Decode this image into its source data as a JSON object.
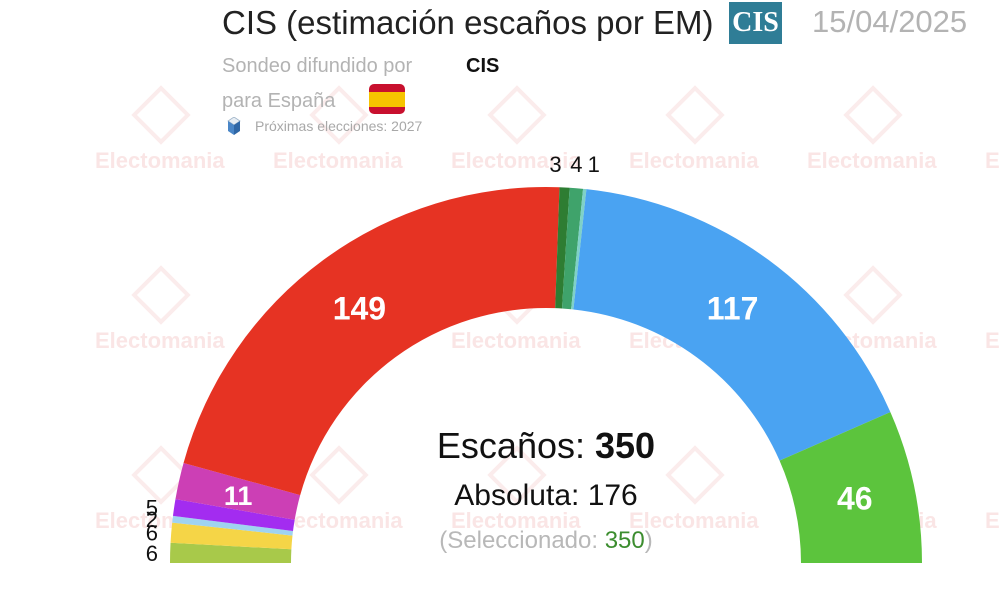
{
  "header": {
    "title": "CIS (estimación escaños por EM)",
    "logo_text": "CIS",
    "date": "15/04/2025",
    "subtitle": "Sondeo difundido por",
    "pollster": "CIS",
    "scope": "para España",
    "next_elections": "Próximas elecciones: 2027"
  },
  "watermark": {
    "text": "Electomania"
  },
  "summary": {
    "seats_label": "Escaños:",
    "seats_total": "350",
    "majority_label": "Absoluta:",
    "majority_value": "176",
    "selected_prefix": "(Seleccionado:",
    "selected_value": "350",
    "selected_suffix": ")"
  },
  "chart_data": {
    "type": "pie",
    "title": "CIS (estimación escaños por EM)",
    "total": 350,
    "majority": 176,
    "layout": "parliament-hemicycle",
    "seats": [
      {
        "label": "6",
        "value": 6,
        "color": "#a8c94a"
      },
      {
        "label": "6",
        "value": 6,
        "color": "#f5d547"
      },
      {
        "label": "2",
        "value": 2,
        "color": "#9fd3f0"
      },
      {
        "label": "5",
        "value": 5,
        "color": "#a32cf0"
      },
      {
        "label": "11",
        "value": 11,
        "color": "#cc3fb5"
      },
      {
        "label": "149",
        "value": 149,
        "color": "#e63323"
      },
      {
        "label": "3",
        "value": 3,
        "color": "#2e7d32"
      },
      {
        "label": "4",
        "value": 4,
        "color": "#3fa36b"
      },
      {
        "label": "1",
        "value": 1,
        "color": "#7fd1c8"
      },
      {
        "label": "117",
        "value": 117,
        "color": "#4aa3f2"
      },
      {
        "label": "46",
        "value": 46,
        "color": "#5cc43d"
      }
    ],
    "label_threshold": 10
  }
}
